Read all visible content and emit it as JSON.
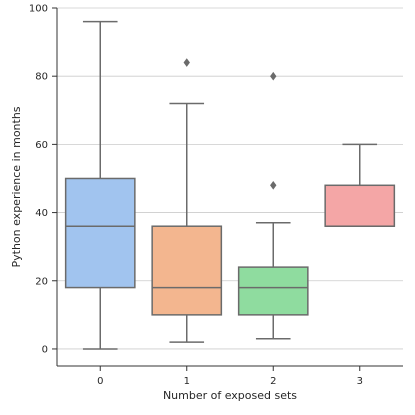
{
  "chart_data": {
    "type": "box",
    "title": "",
    "xlabel": "Number of exposed sets",
    "ylabel": "Python experience in months",
    "categories": [
      "0",
      "1",
      "2",
      "3"
    ],
    "ylim": [
      -5,
      100
    ],
    "yticks": [
      0,
      20,
      40,
      60,
      80,
      100
    ],
    "grid": "horizontal",
    "legend": "none",
    "median_color": "#6b6b6b",
    "boxes": [
      {
        "category": "0",
        "min": 0,
        "q1": 18,
        "median": 36,
        "q3": 50,
        "max": 96,
        "outliers": [],
        "color": "#a1c4ef"
      },
      {
        "category": "1",
        "min": 2,
        "q1": 10,
        "median": 18,
        "q3": 36,
        "max": 72,
        "outliers": [
          84
        ],
        "color": "#f3b68f"
      },
      {
        "category": "2",
        "min": 3,
        "q1": 10,
        "median": 18,
        "q3": 24,
        "max": 37,
        "outliers": [
          48,
          80
        ],
        "color": "#8fdc9f"
      },
      {
        "category": "3",
        "min": 36,
        "q1": 36,
        "median": 36,
        "q3": 48,
        "max": 60,
        "outliers": [],
        "color": "#f4a6a6"
      }
    ]
  }
}
